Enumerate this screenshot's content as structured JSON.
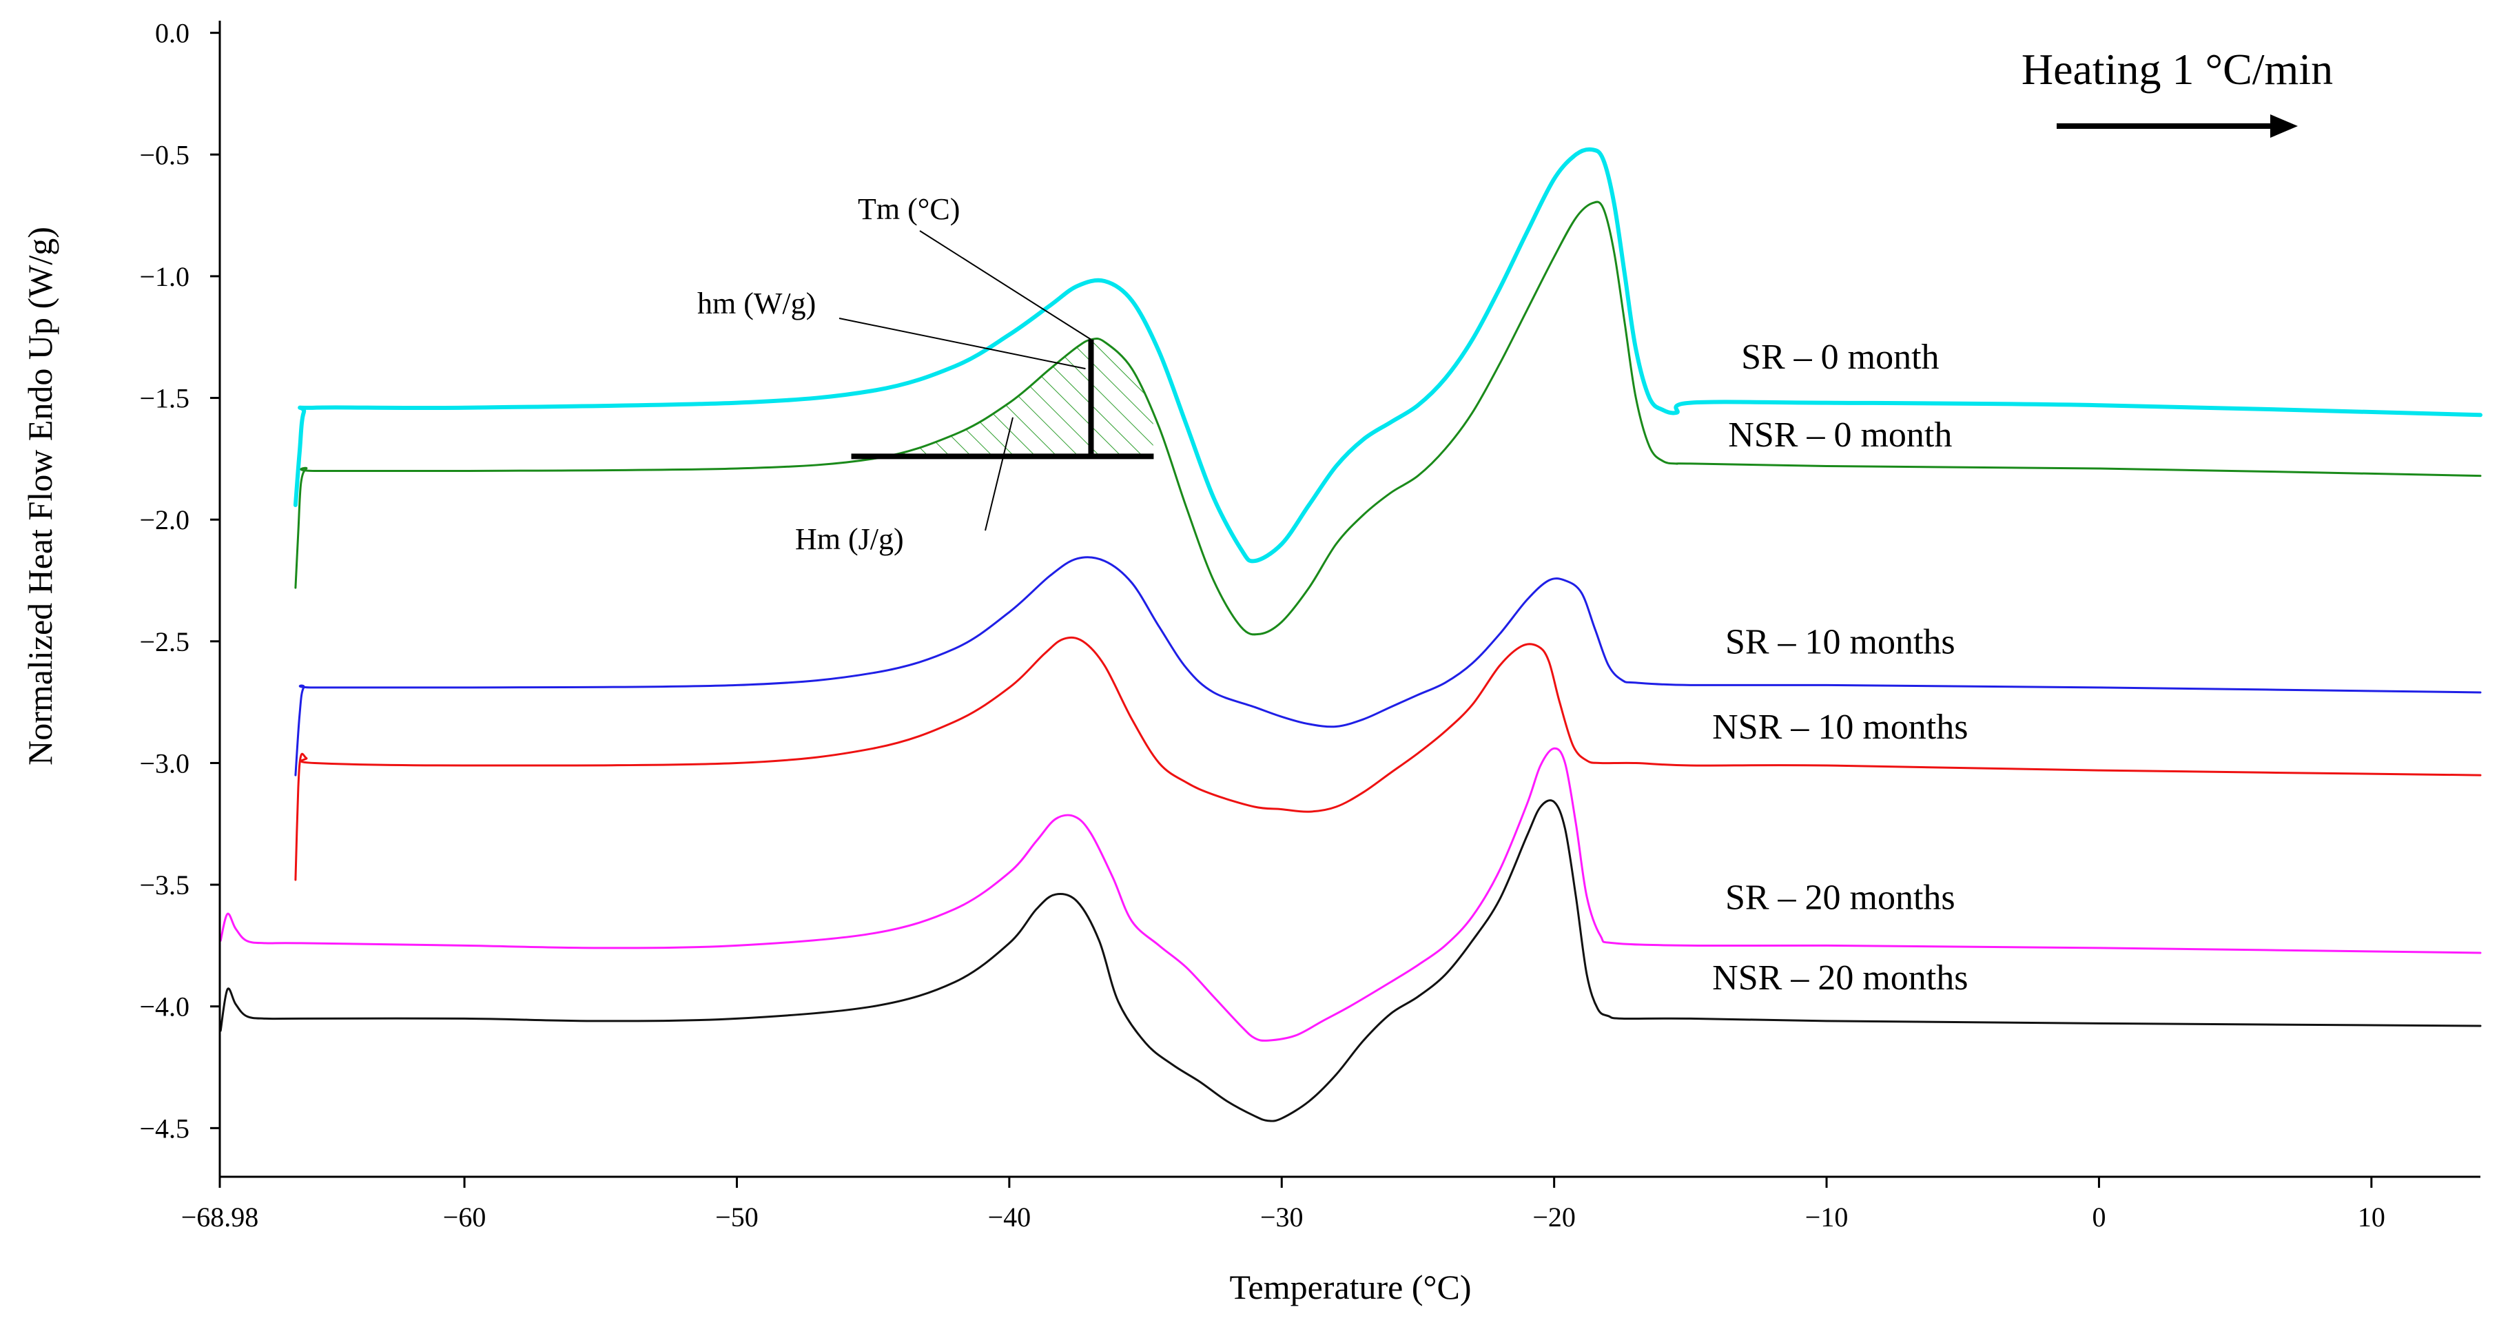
{
  "chart_data": {
    "type": "line",
    "title": "",
    "xlabel": "Temperature (°C)",
    "ylabel": "Normalized Heat Flow Endo Up (W/g)",
    "xlim": [
      -68.98,
      14
    ],
    "ylim": [
      -4.7,
      0.05
    ],
    "xticks": [
      -68.98,
      -60,
      -50,
      -40,
      -30,
      -20,
      -10,
      0,
      10
    ],
    "xtick_labels": [
      "−68.98",
      "−60",
      "−50",
      "−40",
      "−30",
      "−20",
      "−10",
      "0",
      "10"
    ],
    "yticks": [
      0,
      -0.5,
      -1,
      -1.5,
      -2,
      -2.5,
      -3,
      -3.5,
      -4,
      -4.5
    ],
    "ytick_labels": [
      "0.0",
      "−0.5",
      "−1.0",
      "−1.5",
      "−2.0",
      "−2.5",
      "−3.0",
      "−3.5",
      "−4.0",
      "−4.5"
    ],
    "grid": false,
    "series": [
      {
        "name": "SR – 0 month",
        "color": "#00e5ee",
        "width": 6,
        "x": [
          -66.2,
          -66.05,
          -65.9,
          -65.5,
          -60,
          -50,
          -45,
          -42,
          -40,
          -38.5,
          -37.5,
          -36.5,
          -35.5,
          -34.5,
          -33.5,
          -32.5,
          -31.5,
          -31,
          -30,
          -29,
          -28,
          -27,
          -26,
          -25,
          -24,
          -23,
          -22,
          -21,
          -20,
          -19.2,
          -18.6,
          -18.2,
          -17.8,
          -17.4,
          -17,
          -16.5,
          -16,
          -15.5,
          -15,
          -10,
          0,
          14
        ],
        "y": [
          -1.94,
          -1.72,
          -1.56,
          -1.54,
          -1.54,
          -1.52,
          -1.47,
          -1.37,
          -1.24,
          -1.12,
          -1.04,
          -1.02,
          -1.1,
          -1.31,
          -1.61,
          -1.91,
          -2.12,
          -2.17,
          -2.1,
          -1.94,
          -1.78,
          -1.67,
          -1.6,
          -1.53,
          -1.42,
          -1.26,
          -1.05,
          -0.82,
          -0.6,
          -0.5,
          -0.48,
          -0.52,
          -0.7,
          -1.0,
          -1.3,
          -1.5,
          -1.55,
          -1.56,
          -1.52,
          -1.52,
          -1.53,
          -1.57
        ]
      },
      {
        "name": "NSR – 0 month",
        "color": "#1a8a1a",
        "width": 3,
        "x": [
          -66.2,
          -66.1,
          -66.0,
          -65.8,
          -65.5,
          -60,
          -50,
          -45,
          -42,
          -40,
          -38.5,
          -37.5,
          -37,
          -36.5,
          -35.5,
          -34.5,
          -33.5,
          -32.5,
          -31.5,
          -30.8,
          -30,
          -29,
          -28,
          -27,
          -26,
          -25,
          -24,
          -23,
          -22,
          -21,
          -20,
          -19.2,
          -18.6,
          -18.2,
          -17.8,
          -17.4,
          -17,
          -16.5,
          -16,
          -15.5,
          -15,
          -10,
          0,
          14
        ],
        "y": [
          -2.28,
          -2.05,
          -1.85,
          -1.79,
          -1.8,
          -1.8,
          -1.79,
          -1.75,
          -1.65,
          -1.52,
          -1.38,
          -1.29,
          -1.26,
          -1.27,
          -1.38,
          -1.62,
          -1.95,
          -2.25,
          -2.44,
          -2.47,
          -2.42,
          -2.28,
          -2.1,
          -1.98,
          -1.89,
          -1.82,
          -1.71,
          -1.56,
          -1.36,
          -1.14,
          -0.92,
          -0.76,
          -0.7,
          -0.72,
          -0.9,
          -1.2,
          -1.5,
          -1.7,
          -1.76,
          -1.77,
          -1.77,
          -1.78,
          -1.79,
          -1.82
        ]
      },
      {
        "name": "SR – 10 months",
        "color": "#1f1fe6",
        "width": 3,
        "x": [
          -66.2,
          -66.05,
          -65.9,
          -65.5,
          -60,
          -50,
          -45,
          -42,
          -40,
          -38.5,
          -37.5,
          -36.5,
          -35.5,
          -34.5,
          -33.5,
          -32.5,
          -31,
          -30,
          -29,
          -28,
          -27,
          -26,
          -25,
          -24,
          -23,
          -22,
          -21,
          -20.2,
          -19.6,
          -19,
          -18.5,
          -18,
          -17.5,
          -17,
          -15,
          -10,
          0,
          14
        ],
        "y": [
          -3.05,
          -2.8,
          -2.69,
          -2.69,
          -2.69,
          -2.68,
          -2.63,
          -2.53,
          -2.38,
          -2.23,
          -2.16,
          -2.17,
          -2.26,
          -2.44,
          -2.61,
          -2.71,
          -2.77,
          -2.81,
          -2.84,
          -2.85,
          -2.82,
          -2.77,
          -2.72,
          -2.67,
          -2.59,
          -2.47,
          -2.33,
          -2.25,
          -2.25,
          -2.3,
          -2.45,
          -2.6,
          -2.66,
          -2.67,
          -2.68,
          -2.68,
          -2.69,
          -2.71
        ]
      },
      {
        "name": "NSR – 10 months",
        "color": "#ee1111",
        "width": 3,
        "x": [
          -66.2,
          -66.1,
          -66.0,
          -65.8,
          -65.5,
          -60,
          -50,
          -45,
          -42,
          -40,
          -38.7,
          -38.0,
          -37.3,
          -36.5,
          -35.5,
          -34.5,
          -33.5,
          -32.5,
          -31,
          -30,
          -29,
          -28,
          -27,
          -26,
          -25,
          -24,
          -23,
          -22,
          -21.2,
          -20.6,
          -20.2,
          -19.8,
          -19.3,
          -18.8,
          -18.3,
          -17,
          -15,
          -10,
          0,
          14
        ],
        "y": [
          -3.48,
          -3.1,
          -2.97,
          -2.98,
          -3.0,
          -3.01,
          -3.0,
          -2.94,
          -2.83,
          -2.69,
          -2.55,
          -2.49,
          -2.5,
          -2.6,
          -2.82,
          -3.0,
          -3.08,
          -3.13,
          -3.18,
          -3.19,
          -3.2,
          -3.18,
          -3.12,
          -3.04,
          -2.96,
          -2.87,
          -2.76,
          -2.6,
          -2.52,
          -2.52,
          -2.58,
          -2.75,
          -2.93,
          -2.99,
          -3.0,
          -3.0,
          -3.01,
          -3.01,
          -3.03,
          -3.05
        ]
      },
      {
        "name": "SR – 20 months",
        "color": "#ff1aff",
        "width": 3,
        "x": [
          -68.95,
          -68.7,
          -68.4,
          -68.0,
          -67.3,
          -66,
          -60,
          -55,
          -50,
          -45,
          -42,
          -40,
          -39,
          -38.3,
          -37.6,
          -37,
          -36.2,
          -35.5,
          -34.5,
          -33.5,
          -32.5,
          -31.5,
          -31,
          -30.5,
          -29.5,
          -28.5,
          -27.5,
          -26,
          -25,
          -24,
          -23,
          -22,
          -21,
          -20.5,
          -20,
          -19.6,
          -19.2,
          -18.8,
          -18.3,
          -17.8,
          -15,
          -10,
          0,
          14
        ],
        "y": [
          -3.73,
          -3.62,
          -3.68,
          -3.73,
          -3.74,
          -3.74,
          -3.75,
          -3.76,
          -3.75,
          -3.7,
          -3.6,
          -3.45,
          -3.32,
          -3.23,
          -3.22,
          -3.29,
          -3.47,
          -3.65,
          -3.75,
          -3.84,
          -3.96,
          -4.08,
          -4.13,
          -4.14,
          -4.12,
          -4.06,
          -4.0,
          -3.9,
          -3.83,
          -3.75,
          -3.63,
          -3.44,
          -3.17,
          -3.01,
          -2.94,
          -3.0,
          -3.25,
          -3.55,
          -3.71,
          -3.74,
          -3.75,
          -3.75,
          -3.76,
          -3.78
        ]
      },
      {
        "name": "NSR – 20 months",
        "color": "#111111",
        "width": 3,
        "x": [
          -68.95,
          -68.7,
          -68.4,
          -68.0,
          -67.3,
          -66,
          -60,
          -55,
          -50,
          -45,
          -42,
          -40,
          -39,
          -38.3,
          -37.5,
          -36.7,
          -36,
          -35,
          -34,
          -33,
          -32,
          -31,
          -30.5,
          -30,
          -29,
          -28,
          -27,
          -26,
          -25,
          -24,
          -23,
          -22,
          -21,
          -20.5,
          -20,
          -19.6,
          -19.2,
          -18.8,
          -18.4,
          -18,
          -17.5,
          -15,
          -10,
          0,
          14
        ],
        "y": [
          -4.1,
          -3.93,
          -3.99,
          -4.04,
          -4.05,
          -4.05,
          -4.05,
          -4.06,
          -4.05,
          -4.0,
          -3.9,
          -3.74,
          -3.6,
          -3.54,
          -3.57,
          -3.73,
          -3.98,
          -4.15,
          -4.24,
          -4.31,
          -4.39,
          -4.45,
          -4.47,
          -4.46,
          -4.39,
          -4.28,
          -4.14,
          -4.03,
          -3.96,
          -3.87,
          -3.73,
          -3.56,
          -3.3,
          -3.18,
          -3.16,
          -3.27,
          -3.55,
          -3.87,
          -4.01,
          -4.04,
          -4.05,
          -4.05,
          -4.06,
          -4.07,
          -4.08
        ]
      }
    ],
    "series_labels": [
      {
        "text": "SR – 0 month",
        "x": -9.5,
        "y": -1.38
      },
      {
        "text": "NSR – 0 month",
        "x": -9.5,
        "y": -1.7
      },
      {
        "text": "SR – 10 months",
        "x": -9.5,
        "y": -2.55
      },
      {
        "text": "NSR – 10 months",
        "x": -9.5,
        "y": -2.9
      },
      {
        "text": "SR – 20 months",
        "x": -9.5,
        "y": -3.6
      },
      {
        "text": "NSR – 20 months",
        "x": -9.5,
        "y": -3.93
      }
    ],
    "annotations": {
      "heating_text": "Heating 1 °C/min",
      "tm_label": "Tm (°C)",
      "hm_label": "hm (W/g)",
      "Hm_label": "Hm (J/g)",
      "peak_temperature": -37,
      "peak_value": -1.26,
      "baseline_value": -1.74,
      "baseline_start": -45.8,
      "baseline_end": -34.7
    }
  }
}
